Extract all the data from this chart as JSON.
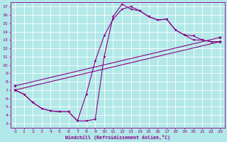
{
  "bg_color": "#b2e8e8",
  "grid_color": "#c8e8e8",
  "line_color": "#880088",
  "xlim": [
    -0.5,
    23.5
  ],
  "ylim": [
    2.5,
    17.5
  ],
  "xticks": [
    0,
    1,
    2,
    3,
    4,
    5,
    6,
    7,
    8,
    9,
    10,
    11,
    12,
    13,
    14,
    15,
    16,
    17,
    18,
    19,
    20,
    21,
    22,
    23
  ],
  "yticks": [
    3,
    4,
    5,
    6,
    7,
    8,
    9,
    10,
    11,
    12,
    13,
    14,
    15,
    16,
    17
  ],
  "xlabel": "Windchill (Refroidissement éolien,°C)",
  "curve1_x": [
    0,
    1,
    2,
    3,
    4,
    5,
    6,
    7,
    8,
    9,
    10,
    11,
    12,
    13,
    14,
    15,
    16,
    17,
    18,
    19,
    20,
    21,
    22,
    23
  ],
  "curve1_y": [
    7.0,
    6.5,
    5.5,
    4.8,
    4.5,
    4.4,
    4.4,
    3.3,
    3.3,
    3.5,
    11.0,
    15.8,
    17.3,
    16.7,
    16.5,
    15.8,
    15.4,
    15.5,
    14.2,
    13.6,
    13.0,
    13.0,
    12.8,
    12.8
  ],
  "curve2_x": [
    0,
    1,
    2,
    3,
    4,
    5,
    6,
    7,
    8,
    9,
    10,
    11,
    12,
    13,
    14,
    15,
    16,
    17,
    18,
    19,
    20,
    21,
    22,
    23
  ],
  "curve2_y": [
    7.0,
    6.5,
    5.5,
    4.8,
    4.5,
    4.4,
    4.4,
    3.3,
    6.5,
    10.5,
    13.5,
    15.5,
    16.7,
    17.0,
    16.5,
    15.8,
    15.4,
    15.5,
    14.2,
    13.6,
    13.5,
    13.0,
    12.8,
    12.8
  ],
  "line1_x": [
    0,
    23
  ],
  "line1_y": [
    7.0,
    12.8
  ],
  "line2_x": [
    0,
    23
  ],
  "line2_y": [
    7.5,
    13.3
  ]
}
